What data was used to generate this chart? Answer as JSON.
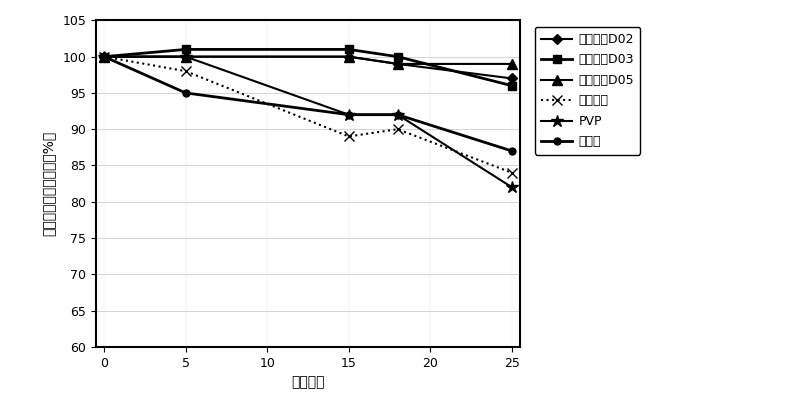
{
  "x": [
    0,
    5,
    15,
    18,
    25
  ],
  "series": [
    {
      "label": "利匹德尔D02",
      "values": [
        100,
        100,
        100,
        99,
        97
      ],
      "color": "#000000",
      "marker": "D",
      "markersize": 5,
      "linestyle": "-",
      "linewidth": 1.5
    },
    {
      "label": "利匹德尔D03",
      "values": [
        100,
        101,
        101,
        100,
        96
      ],
      "color": "#000000",
      "marker": "s",
      "markersize": 6,
      "linestyle": "-",
      "linewidth": 2.0
    },
    {
      "label": "利匹德尔D05",
      "values": [
        100,
        100,
        100,
        99,
        99
      ],
      "color": "#000000",
      "marker": "^",
      "markersize": 7,
      "linestyle": "-",
      "linewidth": 1.5
    },
    {
      "label": "支链淠粉",
      "values": [
        100,
        98,
        89,
        90,
        84
      ],
      "color": "#000000",
      "marker": "x",
      "markersize": 7,
      "linestyle": ":",
      "linewidth": 1.5
    },
    {
      "label": "PVP",
      "values": [
        100,
        100,
        92,
        92,
        82
      ],
      "color": "#000000",
      "marker": "*",
      "markersize": 9,
      "linestyle": "-",
      "linewidth": 1.5
    },
    {
      "label": "葡聚糖",
      "values": [
        100,
        95,
        92,
        92,
        87
      ],
      "color": "#000000",
      "marker": "o",
      "markersize": 5,
      "linestyle": "-",
      "linewidth": 2.0
    }
  ],
  "xlabel": "经过天数",
  "ylabel": "相对于初始值的变化（%）",
  "xlim": [
    0,
    25
  ],
  "ylim": [
    60,
    105
  ],
  "yticks": [
    60,
    65,
    70,
    75,
    80,
    85,
    90,
    95,
    100,
    105
  ],
  "xticks": [
    0,
    5,
    10,
    15,
    20,
    25
  ],
  "background_color": "#ffffff",
  "figsize": [
    8.0,
    4.08
  ],
  "dpi": 100,
  "legend_fontsize": 9,
  "axis_fontsize": 10,
  "tick_fontsize": 9
}
